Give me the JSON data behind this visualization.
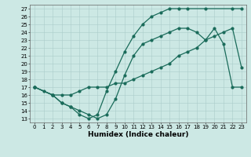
{
  "xlabel": "Humidex (Indice chaleur)",
  "bg_color": "#cce8e4",
  "line_color": "#1a6b5a",
  "grid_color": "#aaccca",
  "xlim": [
    -0.5,
    23.5
  ],
  "ylim": [
    12.5,
    27.5
  ],
  "yticks": [
    13,
    14,
    15,
    16,
    17,
    18,
    19,
    20,
    21,
    22,
    23,
    24,
    25,
    26,
    27
  ],
  "xticks": [
    0,
    1,
    2,
    3,
    4,
    5,
    6,
    7,
    8,
    9,
    10,
    11,
    12,
    13,
    14,
    15,
    16,
    17,
    18,
    19,
    20,
    21,
    22,
    23
  ],
  "line1_x": [
    0,
    1,
    2,
    3,
    4,
    5,
    6,
    7,
    8,
    9,
    10,
    11,
    12,
    13,
    14,
    15,
    16,
    17,
    19,
    22,
    23
  ],
  "line1_y": [
    17.0,
    16.5,
    16.0,
    15.0,
    14.5,
    13.5,
    13.0,
    13.5,
    16.5,
    19.0,
    21.5,
    23.5,
    25.0,
    26.0,
    26.5,
    27.0,
    27.0,
    27.0,
    27.0,
    27.0,
    27.0
  ],
  "line2_x": [
    0,
    2,
    3,
    4,
    5,
    6,
    7,
    8,
    9,
    10,
    11,
    12,
    13,
    14,
    15,
    16,
    17,
    18,
    19,
    20,
    21,
    22,
    23
  ],
  "line2_y": [
    17.0,
    16.0,
    15.0,
    14.5,
    14.0,
    13.5,
    13.0,
    13.5,
    15.5,
    18.5,
    21.0,
    22.5,
    23.0,
    23.5,
    24.0,
    24.5,
    24.5,
    24.0,
    23.0,
    24.5,
    22.5,
    17.0,
    17.0
  ],
  "line3_x": [
    0,
    2,
    3,
    4,
    5,
    6,
    7,
    8,
    9,
    10,
    11,
    12,
    13,
    14,
    15,
    16,
    17,
    18,
    19,
    20,
    21,
    22,
    23
  ],
  "line3_y": [
    17.0,
    16.0,
    16.0,
    16.0,
    16.5,
    17.0,
    17.0,
    17.0,
    17.5,
    17.5,
    18.0,
    18.5,
    19.0,
    19.5,
    20.0,
    21.0,
    21.5,
    22.0,
    23.0,
    23.5,
    24.0,
    24.5,
    19.5
  ],
  "xlabel_fontsize": 6.5,
  "tick_fontsize": 5.0,
  "marker_size": 2.0,
  "line_width": 0.9
}
